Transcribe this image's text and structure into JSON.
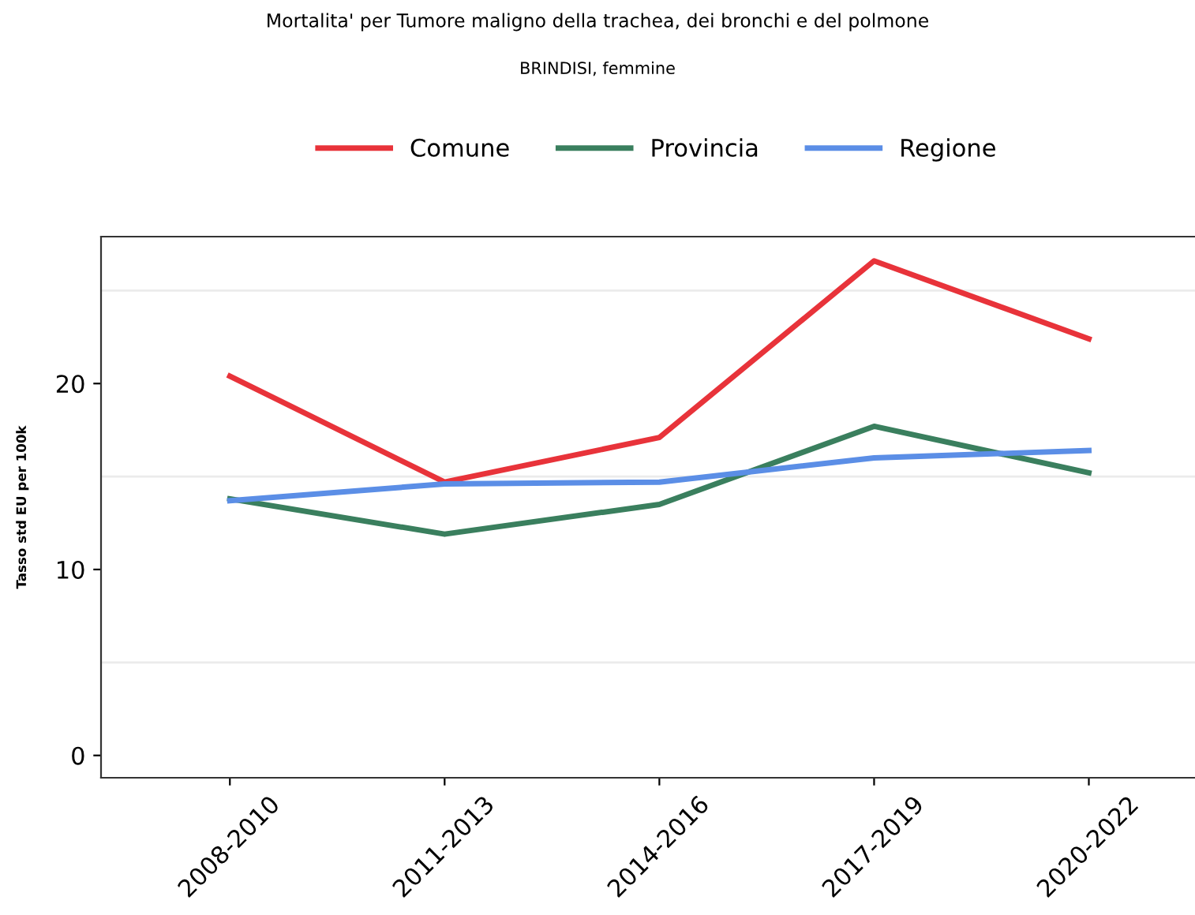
{
  "chart_data": {
    "type": "line",
    "title": "Mortalita' per Tumore maligno della trachea, dei bronchi e del polmone",
    "subtitle": "BRINDISI, femmine",
    "ylabel": "Tasso std EU per 100k",
    "categories": [
      "2008-2010",
      "2011-2013",
      "2014-2016",
      "2017-2019",
      "2020-2022"
    ],
    "series": [
      {
        "name": "Comune",
        "color": "#e8333a",
        "values": [
          20.4,
          14.7,
          17.1,
          26.6,
          22.4
        ]
      },
      {
        "name": "Provincia",
        "color": "#3a7f5e",
        "values": [
          13.8,
          11.9,
          13.5,
          17.7,
          15.2
        ]
      },
      {
        "name": "Regione",
        "color": "#5b8ee6",
        "values": [
          13.7,
          14.6,
          14.7,
          16.0,
          16.4
        ]
      }
    ],
    "ylim": [
      -1.2,
      27.9
    ],
    "yticks": [
      0,
      {
        "value": 5,
        "label": null
      },
      10,
      {
        "value": 15,
        "label": null
      },
      20,
      {
        "value": 25,
        "label": null
      }
    ],
    "grid": "y",
    "legend": "top",
    "marker": "none",
    "line_style": "solid"
  }
}
